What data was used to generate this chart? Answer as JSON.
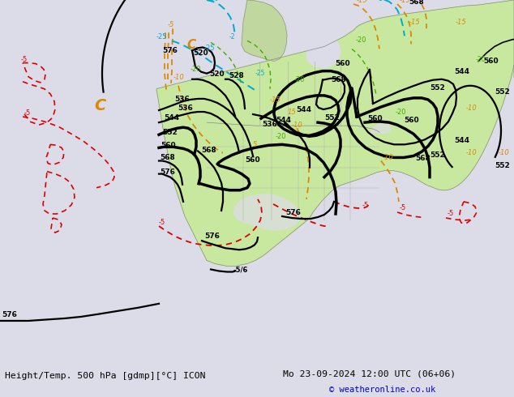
{
  "title_left": "Height/Temp. 500 hPa [gdmp][°C] ICON",
  "title_right": "Mo 23-09-2024 12:00 UTC (06+06)",
  "copyright": "© weatheronline.co.uk",
  "bg_color": "#dcdce8",
  "land_color": "#c8e8a0",
  "ocean_color": "#dcdce8",
  "fig_width": 6.34,
  "fig_height": 4.9,
  "dpi": 100,
  "bar_color": "#e8e8e8",
  "title_color": "#000000",
  "copyright_color": "#0000cc",
  "black": "#000000",
  "orange": "#dd8800",
  "red": "#dd0000",
  "cyan": "#00aacc",
  "green": "#44aa00"
}
